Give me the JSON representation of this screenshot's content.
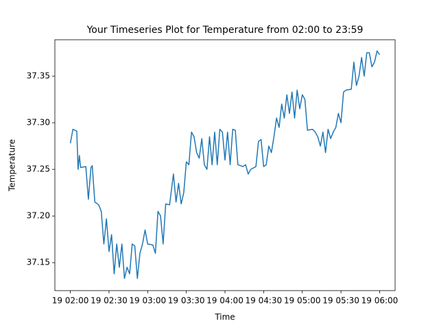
{
  "chart_data": {
    "type": "line",
    "title": "Your Timeseries Plot for Temperature from 02:00 to 23:59",
    "x_label": "Time",
    "y_label": "Temperature",
    "color": "#1f77b4",
    "grid": false,
    "xlim": [
      "19 01:48",
      "19 06:12"
    ],
    "xticks": [
      "19 02:00",
      "19 02:30",
      "19 03:00",
      "19 03:30",
      "19 04:00",
      "19 04:30",
      "19 05:00",
      "19 05:30",
      "19 06:00"
    ],
    "ylim": [
      37.12,
      37.389
    ],
    "yticks": [
      37.15,
      {
        "value": 37.2,
        "label": "37.20"
      },
      37.25,
      {
        "value": 37.3,
        "label": "37.30"
      },
      37.35
    ],
    "x": [
      "19 02:00",
      "19 02:02",
      "19 02:05",
      "19 02:06",
      "19 02:07",
      "19 02:08",
      "19 02:12",
      "19 02:14",
      "19 02:16",
      "19 02:17",
      "19 02:19",
      "19 02:22",
      "19 02:24",
      "19 02:26",
      "19 02:28",
      "19 02:30",
      "19 02:32",
      "19 02:34",
      "19 02:36",
      "19 02:38",
      "19 02:40",
      "19 02:42",
      "19 02:44",
      "19 02:46",
      "19 02:48",
      "19 02:50",
      "19 02:52",
      "19 02:54",
      "19 02:56",
      "19 02:58",
      "19 03:00",
      "19 03:04",
      "19 03:06",
      "19 03:08",
      "19 03:10",
      "19 03:12",
      "19 03:14",
      "19 03:17",
      "19 03:20",
      "19 03:22",
      "19 03:24",
      "19 03:26",
      "19 03:28",
      "19 03:30",
      "19 03:32",
      "19 03:34",
      "19 03:36",
      "19 03:38",
      "19 03:40",
      "19 03:42",
      "19 03:44",
      "19 03:46",
      "19 03:48",
      "19 03:50",
      "19 03:52",
      "19 03:54",
      "19 03:56",
      "19 03:58",
      "19 04:00",
      "19 04:02",
      "19 04:04",
      "19 04:06",
      "19 04:08",
      "19 04:10",
      "19 04:14",
      "19 04:16",
      "19 04:18",
      "19 04:20",
      "19 04:24",
      "19 04:26",
      "19 04:28",
      "19 04:30",
      "19 04:32",
      "19 04:34",
      "19 04:36",
      "19 04:38",
      "19 04:40",
      "19 04:42",
      "19 04:44",
      "19 04:46",
      "19 04:48",
      "19 04:50",
      "19 04:52",
      "19 04:54",
      "19 04:56",
      "19 04:58",
      "19 05:00",
      "19 05:02",
      "19 05:04",
      "19 05:08",
      "19 05:10",
      "19 05:12",
      "19 05:14",
      "19 05:16",
      "19 05:18",
      "19 05:20",
      "19 05:22",
      "19 05:24",
      "19 05:26",
      "19 05:28",
      "19 05:30",
      "19 05:32",
      "19 05:34",
      "19 05:38",
      "19 05:40",
      "19 05:42",
      "19 05:44",
      "19 05:46",
      "19 05:48",
      "19 05:50",
      "19 05:52",
      "19 05:54",
      "19 05:56",
      "19 05:58",
      "19 06:00"
    ],
    "values": [
      37.278,
      37.293,
      37.291,
      37.25,
      37.265,
      37.252,
      37.253,
      37.218,
      37.252,
      37.254,
      37.215,
      37.212,
      37.205,
      37.17,
      37.197,
      37.162,
      37.18,
      37.138,
      37.17,
      37.145,
      37.17,
      37.133,
      37.145,
      37.138,
      37.17,
      37.168,
      37.133,
      37.16,
      37.17,
      37.185,
      37.17,
      37.169,
      37.16,
      37.205,
      37.2,
      37.17,
      37.213,
      37.212,
      37.245,
      37.215,
      37.235,
      37.213,
      37.225,
      37.258,
      37.255,
      37.29,
      37.285,
      37.268,
      37.262,
      37.283,
      37.255,
      37.25,
      37.285,
      37.255,
      37.29,
      37.255,
      37.293,
      37.29,
      37.26,
      37.29,
      37.255,
      37.293,
      37.292,
      37.255,
      37.253,
      37.255,
      37.245,
      37.25,
      37.253,
      37.28,
      37.282,
      37.253,
      37.255,
      37.275,
      37.268,
      37.285,
      37.305,
      37.295,
      37.32,
      37.305,
      37.33,
      37.31,
      37.333,
      37.305,
      37.335,
      37.315,
      37.33,
      37.325,
      37.292,
      37.293,
      37.29,
      37.285,
      37.275,
      37.29,
      37.268,
      37.293,
      37.283,
      37.29,
      37.295,
      37.31,
      37.3,
      37.333,
      37.335,
      37.336,
      37.365,
      37.34,
      37.35,
      37.37,
      37.35,
      37.375,
      37.375,
      37.36,
      37.365,
      37.377,
      37.373
    ]
  }
}
